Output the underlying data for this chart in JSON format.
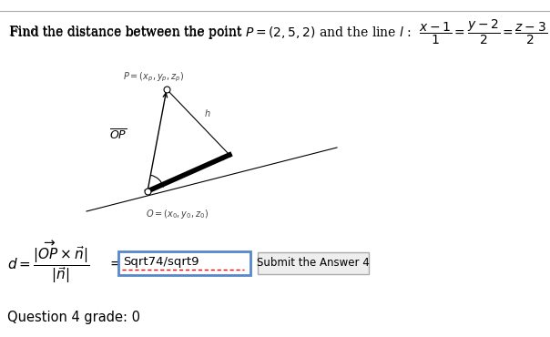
{
  "bg_color": "#ffffff",
  "title_text_1": "Find the distance between the point ",
  "title_text_2": "$P = (2, 5, 2)$",
  "title_text_3": " and the line ",
  "title_text_4": "$l$",
  "title_text_5": " : $\\dfrac{x-1}{1} = \\dfrac{y-2}{2} = \\dfrac{z-3}{2}$",
  "diagram_label_P": "$P=(x_p,y_p,z_p)$",
  "diagram_label_O": "$O=(x_0,y_0,z_0)$",
  "diagram_label_OP": "$\\overline{OP}$",
  "diagram_label_h": "$h$",
  "formula_text": "$d = \\dfrac{|\\overrightarrow{OP}\\times\\vec{n}|}{|\\vec{n}|}$",
  "equals_text": "$=$",
  "input_text": "Sqrt74/sqrt9",
  "submit_text": "Submit the Answer 4",
  "grade_text": "Question 4 grade: 0"
}
